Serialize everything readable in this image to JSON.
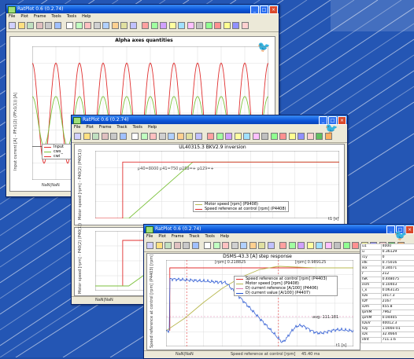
{
  "windows": {
    "w1": {
      "title": "RatPlot 0.6 (0.2.74)",
      "menu": [
        "File",
        "Plot",
        "Frame",
        "Tools",
        "Tools",
        "Help"
      ],
      "plot_title": "Alpha axes quantities",
      "ylabel": "Input current [A] - PFx1(2) (PFx1(1)) [A]",
      "xlabel": "NaN|NaN",
      "legend": [
        "Input",
        "cws_",
        "cwi"
      ]
    },
    "w2": {
      "title": "RatPlot 0.6 (0.2.74)",
      "menu": [
        "File",
        "Plot",
        "Frame",
        "Track",
        "Tools",
        "Help"
      ],
      "plot_title": "UL40315.3 BKV2.9 inversion",
      "params": "p40=8000  p41=750  p288=+  p129=+",
      "ylabel_top": "Motor speed [rpm] - P40(2) (P40(1))",
      "ylabel_bottom": "Motor speed [rpm] - P40(2) (P40(1))",
      "xlabel": "t1 [s]",
      "status": "NaN|NaN",
      "legend": [
        "Motor speed [rpm] (P9408)",
        "Speed reference at control [rpm] (P4408)"
      ]
    },
    "w3": {
      "title": "RatPlot 0.6 (0.2.74)",
      "menu": [
        "File",
        "Plot",
        "Frame",
        "Track",
        "Tools",
        "Help"
      ],
      "plot_title": "DSMS-43.3 [A] step response",
      "ylabel": "Speed reference at control [rpm] (P4403) [rpm]",
      "xlabel": "t1 [s]",
      "annot_left": "[rpm] 0.218825",
      "annot_right": "[rpm] 0.989125",
      "annot_avg": "avg: 111.181",
      "status_left": "NaN|NaN",
      "status_mid": "Speed reference at control [rpm]",
      "status_right": "45.40 ms",
      "legend": [
        "Speed reference at control [rpm] (P4403)",
        "Motor speed [rpm] (P9408)",
        "D) current reference [A/100] (P4406)",
        "D) current value [A/100] (P4407)"
      ],
      "side_table": [
        [
          "u1",
          "4000"
        ],
        [
          "u",
          "0.36129"
        ],
        [
          "i1y",
          "0"
        ],
        [
          "idk",
          "0.75016"
        ],
        [
          "ikx",
          "0.34071"
        ],
        [
          "r",
          "212"
        ],
        [
          "ISK",
          "0.448075"
        ],
        [
          "ilsm",
          "0.10403"
        ],
        [
          "i_x",
          "0.063135"
        ],
        [
          "IDv",
          "1017.3"
        ],
        [
          "IDY",
          "2167"
        ],
        [
          "iDm",
          "455.8"
        ],
        [
          "lpmM",
          "7962"
        ],
        [
          "ipmM",
          "0.04405"
        ],
        [
          "IDuV",
          "40012.3"
        ],
        [
          "IDy",
          "1.000e-01"
        ],
        [
          "iDs",
          "32.4664"
        ],
        [
          "idnt",
          "711.1.6"
        ]
      ]
    }
  },
  "colors": {
    "accent": "#0a54d8",
    "red": "#e03030",
    "green": "#7cc23c",
    "olive": "#b8b850",
    "blue": "#2050d0",
    "pink": "#e080b0"
  },
  "chart_data": [
    {
      "type": "line",
      "title": "Alpha axes quantities",
      "x": [
        0,
        0.3,
        0.6,
        0.9,
        1.2,
        1.5,
        1.8,
        2.1,
        2.4,
        2.7,
        3.0,
        3.3,
        3.6,
        3.9,
        4.2,
        4.5,
        4.8,
        5.1,
        5.4,
        5.7,
        6.0
      ],
      "series": [
        {
          "name": "Input",
          "values": [
            10000,
            -2000,
            10000,
            -2000,
            10000,
            -2000,
            10000,
            -2000,
            10000,
            -2000,
            10000,
            -2000,
            10000,
            -2000,
            10000,
            -2000,
            10000,
            -2000,
            10000,
            -2000,
            10000
          ]
        },
        {
          "name": "cws_",
          "values": [
            6000,
            0,
            6000,
            0,
            6000,
            0,
            6000,
            0,
            6000,
            0,
            6000,
            0,
            6000,
            0,
            6000,
            0,
            6000,
            0,
            6000,
            0,
            6000
          ]
        }
      ],
      "ylim": [
        -4000,
        12000
      ]
    },
    {
      "type": "line",
      "title": "UL40315.3 BKV2.9 inversion",
      "x": [
        0,
        0.5,
        1,
        1.5,
        2,
        2.5,
        3,
        3.5,
        4
      ],
      "series": [
        {
          "name": "Motor speed [rpm] (P9408)",
          "values": [
            0,
            0,
            400,
            1000,
            1000,
            1000,
            1000,
            1000,
            1000
          ]
        },
        {
          "name": "Speed reference at control [rpm] (P4408)",
          "values": [
            0,
            1000,
            1000,
            1000,
            1000,
            1000,
            1000,
            1000,
            1000
          ]
        }
      ],
      "ylim": [
        0,
        1200
      ]
    },
    {
      "type": "line",
      "title": "DSMS-43.3 [A] step response",
      "x": [
        0,
        0.1,
        0.2,
        0.3,
        0.4,
        0.5,
        0.6,
        0.7,
        0.8,
        0.9,
        1.0
      ],
      "series": [
        {
          "name": "Speed reference at control [rpm] (P4403)",
          "values": [
            4000,
            4000,
            4000,
            4000,
            4000,
            4000,
            4000,
            4000,
            4000,
            4000,
            4000
          ]
        },
        {
          "name": "Motor speed [rpm] (P9408)",
          "values": [
            0,
            800,
            1800,
            2700,
            3400,
            3900,
            4100,
            4050,
            4000,
            4000,
            4000
          ]
        },
        {
          "name": "D) current value [A/100] (P4407)",
          "values": [
            3300,
            3300,
            3200,
            3000,
            2400,
            900,
            -600,
            -300,
            0,
            100,
            0
          ]
        }
      ],
      "ylim": [
        -1000,
        4500
      ]
    }
  ]
}
